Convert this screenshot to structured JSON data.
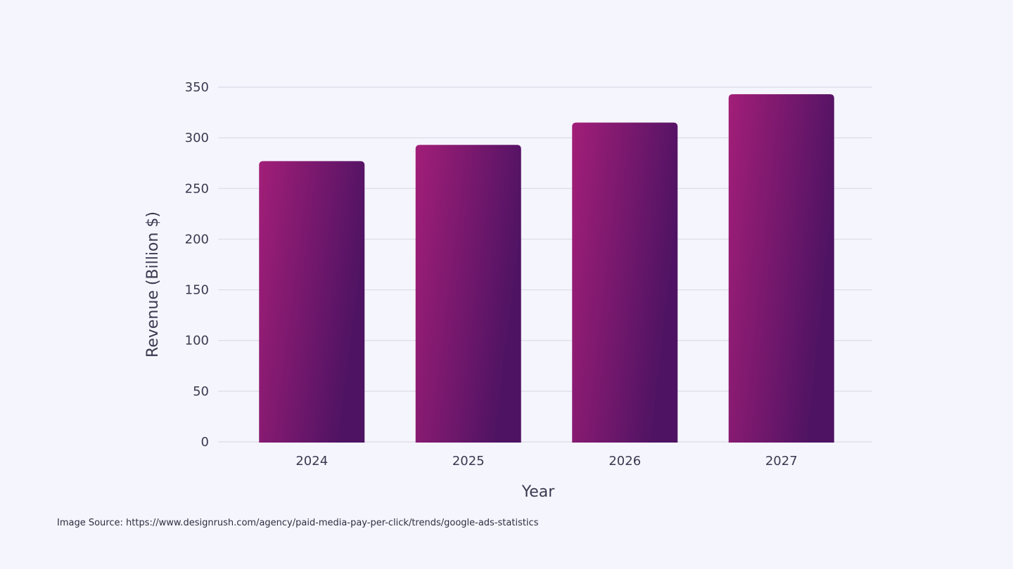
{
  "chart_data": {
    "type": "bar",
    "title": "",
    "xlabel": "Year",
    "ylabel": "Revenue (Billion $)",
    "categories": [
      "2024",
      "2025",
      "2026",
      "2027"
    ],
    "values": [
      277,
      293,
      315,
      343
    ],
    "ylim": [
      0,
      350
    ],
    "yticks": [
      "0",
      "50",
      "100",
      "150",
      "200",
      "250",
      "300",
      "350"
    ],
    "grid": true,
    "colors": {
      "bar_start": "#a21e78",
      "bar_end": "#4e1363",
      "grid": "#dcdbe8",
      "text": "#3a3950",
      "background": "#f5f5fd"
    }
  },
  "footer": {
    "source_text": "Image Source: https://www.designrush.com/agency/paid-media-pay-per-click/trends/google-ads-statistics"
  }
}
